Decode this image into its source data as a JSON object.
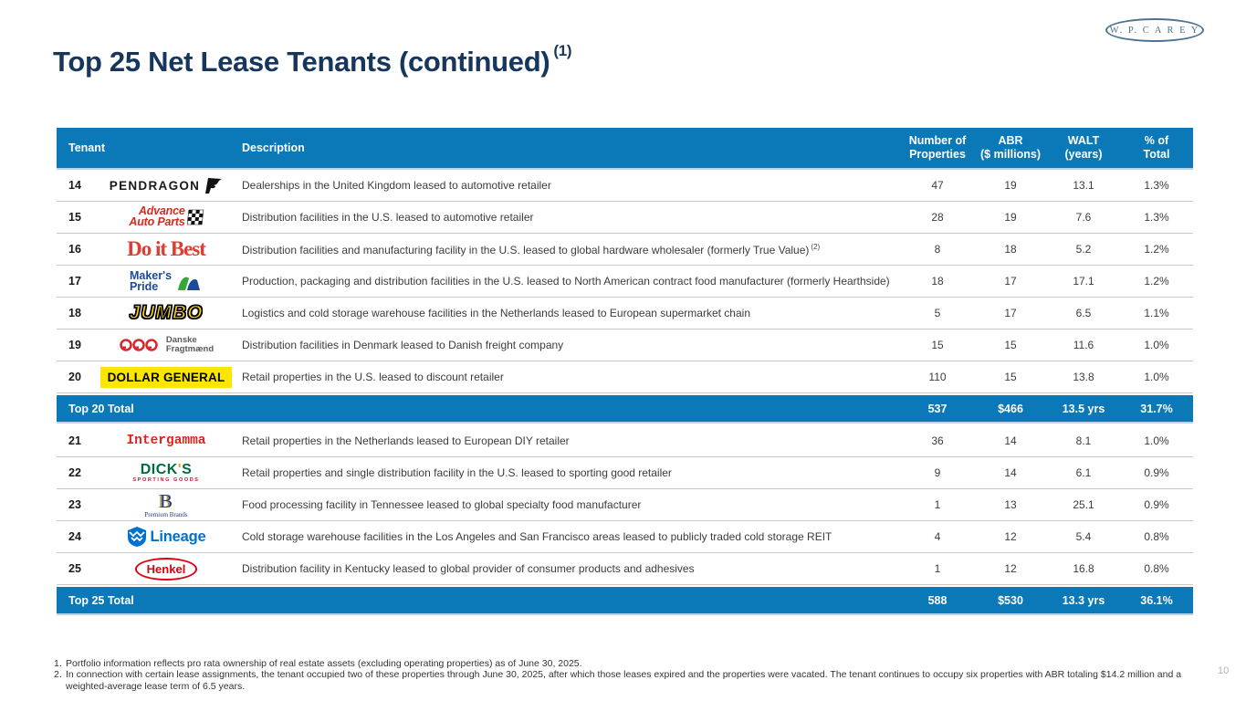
{
  "brand": {
    "logo_text": "W. P. C A R E Y"
  },
  "page": {
    "title": "Top 25 Net Lease Tenants (continued)",
    "title_note": "(1)",
    "page_number": "10"
  },
  "table": {
    "headers": {
      "tenant": "Tenant",
      "description": "Description",
      "properties_l1": "Number of",
      "properties_l2": "Properties",
      "abr_l1": "ABR",
      "abr_l2": "($ millions)",
      "walt_l1": "WALT",
      "walt_l2": "(years)",
      "pct_l1": "% of",
      "pct_l2": "Total"
    },
    "rows": [
      {
        "rank": "14",
        "tenant": "Pendragon",
        "logo": {
          "type": "pendragon",
          "text": "PENDRAGON"
        },
        "description": "Dealerships in the United Kingdom leased to automotive retailer",
        "note": "",
        "properties": "47",
        "abr": "19",
        "walt": "13.1",
        "pct": "1.3%"
      },
      {
        "rank": "15",
        "tenant": "Advance Auto Parts",
        "logo": {
          "type": "advance",
          "line1": "Advance",
          "line2": "Auto Parts"
        },
        "description": "Distribution facilities in the U.S. leased to automotive retailer",
        "note": "",
        "properties": "28",
        "abr": "19",
        "walt": "7.6",
        "pct": "1.3%"
      },
      {
        "rank": "16",
        "tenant": "Do it Best",
        "logo": {
          "type": "doitbest",
          "text": "Do it Best"
        },
        "description": "Distribution facilities and manufacturing facility in the U.S. leased to global hardware wholesaler (formerly True Value)",
        "note": "(2)",
        "properties": "8",
        "abr": "18",
        "walt": "5.2",
        "pct": "1.2%"
      },
      {
        "rank": "17",
        "tenant": "Maker's Pride",
        "logo": {
          "type": "makerspride",
          "line1": "Maker's",
          "line2": "Pride"
        },
        "description": "Production, packaging and distribution facilities in the U.S. leased to North American contract food manufacturer (formerly Hearthside)",
        "note": "",
        "properties": "18",
        "abr": "17",
        "walt": "17.1",
        "pct": "1.2%"
      },
      {
        "rank": "18",
        "tenant": "Jumbo",
        "logo": {
          "type": "jumbo",
          "text": "JUMBO"
        },
        "description": "Logistics and cold storage warehouse facilities in the Netherlands leased to European supermarket chain",
        "note": "",
        "properties": "5",
        "abr": "17",
        "walt": "6.5",
        "pct": "1.1%"
      },
      {
        "rank": "19",
        "tenant": "Danske Fragtmænd",
        "logo": {
          "type": "danske",
          "line1": "Danske",
          "line2": "Fragtmænd"
        },
        "description": "Distribution facilities in Denmark leased to Danish freight company",
        "note": "",
        "properties": "15",
        "abr": "15",
        "walt": "11.6",
        "pct": "1.0%"
      },
      {
        "rank": "20",
        "tenant": "Dollar General",
        "logo": {
          "type": "dollargeneral",
          "text": "DOLLAR GENERAL"
        },
        "description": "Retail properties in the U.S. leased to discount retailer",
        "note": "",
        "properties": "110",
        "abr": "15",
        "walt": "13.8",
        "pct": "1.0%"
      },
      {
        "rank": "21",
        "tenant": "Intergamma",
        "logo": {
          "type": "intergamma",
          "text": "Intergamma"
        },
        "description": "Retail properties in the Netherlands leased to European DIY retailer",
        "note": "",
        "properties": "36",
        "abr": "14",
        "walt": "8.1",
        "pct": "1.0%"
      },
      {
        "rank": "22",
        "tenant": "Dick's Sporting Goods",
        "logo": {
          "type": "dicks",
          "text": "DICK'S",
          "sub": "SPORTING GOODS"
        },
        "description": "Retail properties and single distribution facility in the U.S. leased to sporting good retailer",
        "note": "",
        "properties": "9",
        "abr": "14",
        "walt": "6.1",
        "pct": "0.9%"
      },
      {
        "rank": "23",
        "tenant": "Premium Brands",
        "logo": {
          "type": "premiumbrands",
          "monogram": "B",
          "text": "Premium Brands"
        },
        "description": "Food processing facility in Tennessee leased to global specialty food manufacturer",
        "note": "",
        "properties": "1",
        "abr": "13",
        "walt": "25.1",
        "pct": "0.9%"
      },
      {
        "rank": "24",
        "tenant": "Lineage",
        "logo": {
          "type": "lineage",
          "text": "Lineage"
        },
        "description": "Cold storage warehouse facilities in the Los Angeles and San Francisco areas leased to publicly traded cold storage REIT",
        "note": "",
        "properties": "4",
        "abr": "12",
        "walt": "5.4",
        "pct": "0.8%"
      },
      {
        "rank": "25",
        "tenant": "Henkel",
        "logo": {
          "type": "henkel",
          "text": "Henkel"
        },
        "description": "Distribution facility in Kentucky leased to global provider of consumer products and adhesives",
        "note": "",
        "properties": "1",
        "abr": "12",
        "walt": "16.8",
        "pct": "0.8%"
      }
    ],
    "total_rows": [
      {
        "label": "Top 20 Total",
        "insert_after_rank": "20",
        "properties": "537",
        "abr": "$466",
        "walt": "13.5 yrs",
        "pct": "31.7%"
      },
      {
        "label": "Top 25 Total",
        "insert_after_rank": "25",
        "properties": "588",
        "abr": "$530",
        "walt": "13.3 yrs",
        "pct": "36.1%"
      }
    ]
  },
  "footnotes": [
    {
      "num": "1.",
      "text": "Portfolio information reflects pro rata ownership of real estate assets (excluding operating properties) as of June 30, 2025."
    },
    {
      "num": "2.",
      "text": "In connection with certain lease assignments, the tenant occupied two of these properties through June 30, 2025, after which those leases expired and the properties were vacated. The tenant continues to occupy six properties with ABR totaling $14.2 million and a weighted-average lease term of 6.5 years."
    }
  ],
  "colors": {
    "header_blue": "#0b79b8",
    "title_navy": "#17365d",
    "brand_steel_blue": "#4c7490",
    "dollar_general_yellow": "#fee600",
    "jumbo_yellow": "#ffd400"
  }
}
